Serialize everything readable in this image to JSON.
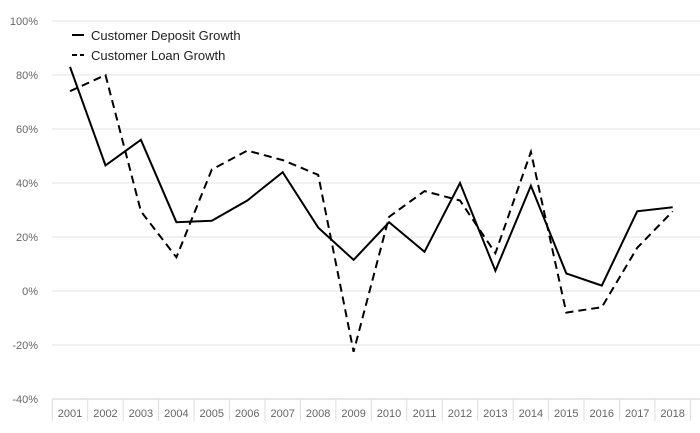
{
  "chart_data": {
    "type": "line",
    "title": "",
    "xlabel": "",
    "ylabel": "",
    "categories": [
      "2001",
      "2002",
      "2003",
      "2004",
      "2005",
      "2006",
      "2007",
      "2008",
      "2009",
      "2010",
      "2011",
      "2012",
      "2013",
      "2014",
      "2015",
      "2016",
      "2017",
      "2018"
    ],
    "ylim": [
      -40,
      100
    ],
    "yticks": [
      -40,
      -20,
      0,
      20,
      40,
      60,
      80,
      100
    ],
    "ytick_labels": [
      "-40%",
      "-20%",
      "0%",
      "20%",
      "40%",
      "60%",
      "80%",
      "100%"
    ],
    "grid": true,
    "legend_position": "top-left",
    "series": [
      {
        "name": "Customer Deposit Growth",
        "style": "solid",
        "color": "#000000",
        "values": [
          83,
          46.5,
          56,
          25.5,
          26,
          33.5,
          44,
          23.5,
          11.5,
          25.5,
          14.5,
          40,
          7.5,
          39,
          6.5,
          2,
          29.5,
          31
        ]
      },
      {
        "name": "Customer Loan Growth",
        "style": "dashed",
        "color": "#000000",
        "values": [
          74,
          80,
          29.5,
          12.5,
          45,
          52,
          48.5,
          43,
          -22.5,
          27.5,
          37,
          33.5,
          14,
          51.5,
          -8,
          -6,
          16,
          29.5
        ]
      }
    ]
  }
}
